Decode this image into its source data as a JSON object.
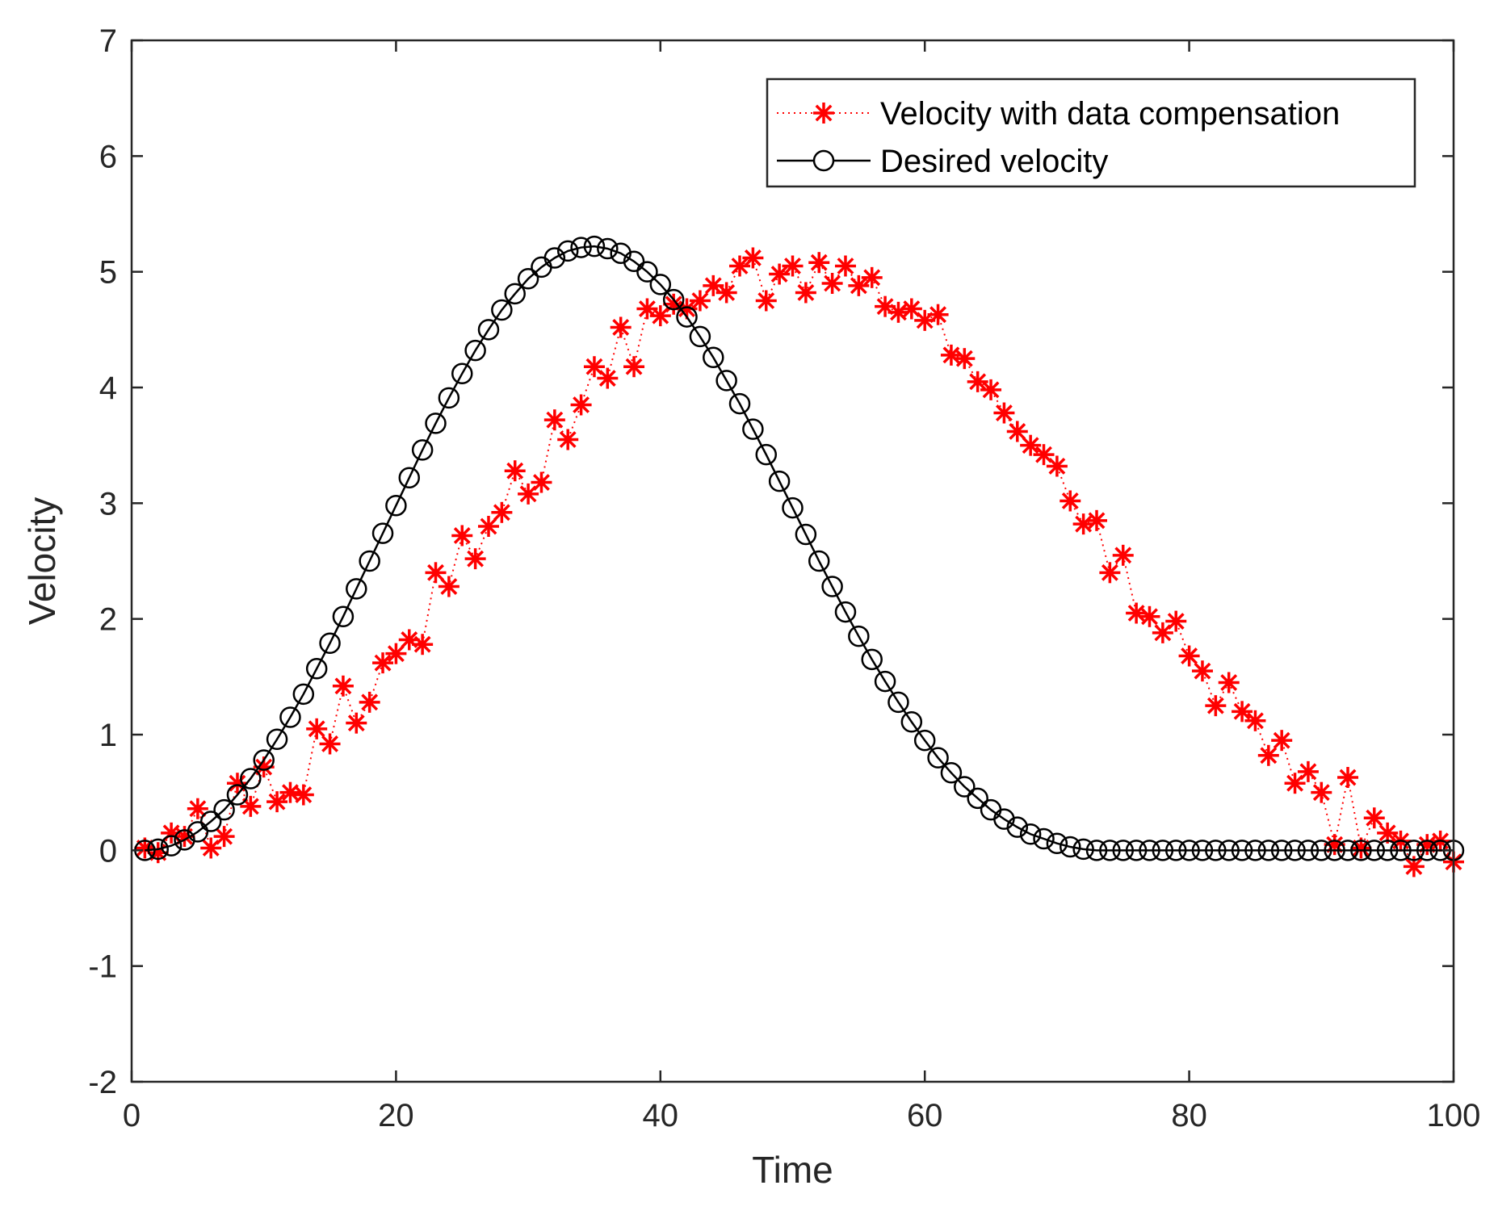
{
  "chart_data": {
    "type": "line",
    "xlabel": "Time",
    "ylabel": "Velocity",
    "xlim": [
      0,
      100
    ],
    "ylim": [
      -2,
      7
    ],
    "xticks": [
      0,
      20,
      40,
      60,
      80,
      100
    ],
    "yticks": [
      -2,
      -1,
      0,
      1,
      2,
      3,
      4,
      5,
      6,
      7
    ],
    "xtick_labels": [
      "0",
      "20",
      "40",
      "60",
      "80",
      "100"
    ],
    "ytick_labels": [
      "-2",
      "-1",
      "0",
      "1",
      "2",
      "3",
      "4",
      "5",
      "6",
      "7"
    ],
    "grid": false,
    "legend_position": "top-right",
    "series": [
      {
        "name": "Velocity with data compensation",
        "color": "#ff0000",
        "line_style": "dotted",
        "marker": "asterisk",
        "x": [
          1,
          2,
          3,
          4,
          5,
          6,
          7,
          8,
          9,
          10,
          11,
          12,
          13,
          14,
          15,
          16,
          17,
          18,
          19,
          20,
          21,
          22,
          23,
          24,
          25,
          26,
          27,
          28,
          29,
          30,
          31,
          32,
          33,
          34,
          35,
          36,
          37,
          38,
          39,
          40,
          41,
          42,
          43,
          44,
          45,
          46,
          47,
          48,
          49,
          50,
          51,
          52,
          53,
          54,
          55,
          56,
          57,
          58,
          59,
          60,
          61,
          62,
          63,
          64,
          65,
          66,
          67,
          68,
          69,
          70,
          71,
          72,
          73,
          74,
          75,
          76,
          77,
          78,
          79,
          80,
          81,
          82,
          83,
          84,
          85,
          86,
          87,
          88,
          89,
          90,
          91,
          92,
          93,
          94,
          95,
          96,
          97,
          98,
          99,
          100
        ],
        "values": [
          0.02,
          -0.02,
          0.15,
          0.12,
          0.36,
          0.02,
          0.12,
          0.58,
          0.38,
          0.72,
          0.42,
          0.5,
          0.48,
          1.05,
          0.92,
          1.42,
          1.1,
          1.28,
          1.62,
          1.7,
          1.82,
          1.78,
          2.4,
          2.28,
          2.72,
          2.52,
          2.8,
          2.92,
          3.28,
          3.08,
          3.18,
          3.72,
          3.55,
          3.85,
          4.18,
          4.08,
          4.52,
          4.18,
          4.68,
          4.62,
          4.72,
          4.68,
          4.75,
          4.88,
          4.82,
          5.05,
          5.12,
          4.75,
          4.98,
          5.05,
          4.82,
          5.08,
          4.9,
          5.05,
          4.88,
          4.95,
          4.7,
          4.65,
          4.68,
          4.58,
          4.63,
          4.28,
          4.25,
          4.05,
          3.98,
          3.78,
          3.62,
          3.5,
          3.42,
          3.32,
          3.02,
          2.82,
          2.85,
          2.4,
          2.55,
          2.05,
          2.02,
          1.88,
          1.98,
          1.68,
          1.55,
          1.25,
          1.45,
          1.2,
          1.12,
          0.82,
          0.95,
          0.58,
          0.68,
          0.5,
          0.05,
          0.63,
          0.02,
          0.28,
          0.15,
          0.08,
          -0.14,
          0.05,
          0.08,
          -0.1
        ]
      },
      {
        "name": "Desired velocity",
        "color": "#000000",
        "line_style": "solid",
        "marker": "circle",
        "x": [
          1,
          2,
          3,
          4,
          5,
          6,
          7,
          8,
          9,
          10,
          11,
          12,
          13,
          14,
          15,
          16,
          17,
          18,
          19,
          20,
          21,
          22,
          23,
          24,
          25,
          26,
          27,
          28,
          29,
          30,
          31,
          32,
          33,
          34,
          35,
          36,
          37,
          38,
          39,
          40,
          41,
          42,
          43,
          44,
          45,
          46,
          47,
          48,
          49,
          50,
          51,
          52,
          53,
          54,
          55,
          56,
          57,
          58,
          59,
          60,
          61,
          62,
          63,
          64,
          65,
          66,
          67,
          68,
          69,
          70,
          71,
          72,
          73,
          74,
          75,
          76,
          77,
          78,
          79,
          80,
          81,
          82,
          83,
          84,
          85,
          86,
          87,
          88,
          89,
          90,
          91,
          92,
          93,
          94,
          95,
          96,
          97,
          98,
          99,
          100
        ],
        "values": [
          0.0,
          0.01,
          0.04,
          0.09,
          0.16,
          0.25,
          0.35,
          0.48,
          0.62,
          0.78,
          0.96,
          1.15,
          1.35,
          1.57,
          1.79,
          2.02,
          2.26,
          2.5,
          2.74,
          2.98,
          3.22,
          3.46,
          3.69,
          3.91,
          4.12,
          4.32,
          4.5,
          4.67,
          4.81,
          4.94,
          5.04,
          5.12,
          5.18,
          5.21,
          5.22,
          5.2,
          5.16,
          5.09,
          5.0,
          4.89,
          4.76,
          4.61,
          4.44,
          4.26,
          4.06,
          3.86,
          3.64,
          3.42,
          3.19,
          2.96,
          2.73,
          2.5,
          2.28,
          2.06,
          1.85,
          1.65,
          1.46,
          1.28,
          1.11,
          0.95,
          0.8,
          0.67,
          0.55,
          0.45,
          0.35,
          0.27,
          0.2,
          0.14,
          0.1,
          0.06,
          0.03,
          0.01,
          0.0,
          0.0,
          0.0,
          0.0,
          0.0,
          0.0,
          0.0,
          0.0,
          0.0,
          0.0,
          0.0,
          0.0,
          0.0,
          0.0,
          0.0,
          0.0,
          0.0,
          0.0,
          0.0,
          0.0,
          0.0,
          0.0,
          0.0,
          0.0,
          0.0,
          0.0,
          0.0,
          0.0
        ]
      }
    ]
  }
}
